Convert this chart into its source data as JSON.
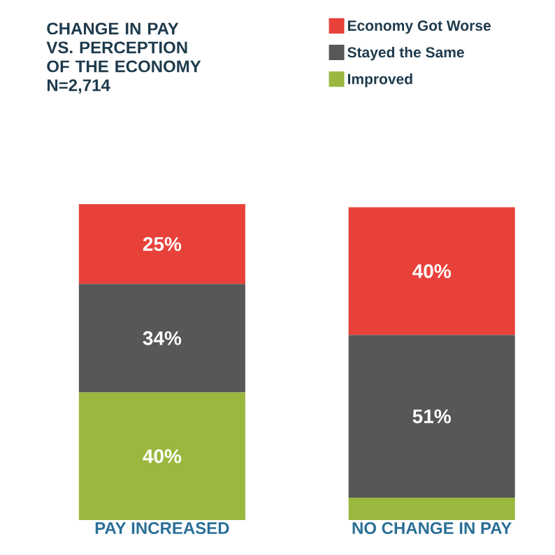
{
  "chart_data": {
    "type": "bar",
    "stacked": true,
    "title": "CHANGE IN PAY VS. PERCEPTION OF THE ECONOMY",
    "subtitle": "N=2,714",
    "categories": [
      "PAY INCREASED",
      "NO CHANGE IN PAY"
    ],
    "legend": "top right",
    "series": [
      {
        "name": "Improved",
        "color": "#9ab83e",
        "values": [
          40,
          7
        ],
        "value_labels": [
          "40%",
          null
        ]
      },
      {
        "name": "Stayed the Same",
        "color": "#575757",
        "values": [
          34,
          51
        ],
        "value_labels": [
          "34%",
          "51%"
        ]
      },
      {
        "name": "Economy Got Worse",
        "color": "#e8413a",
        "values": [
          25,
          40
        ],
        "value_labels": [
          "25%",
          "40%"
        ]
      }
    ]
  }
}
